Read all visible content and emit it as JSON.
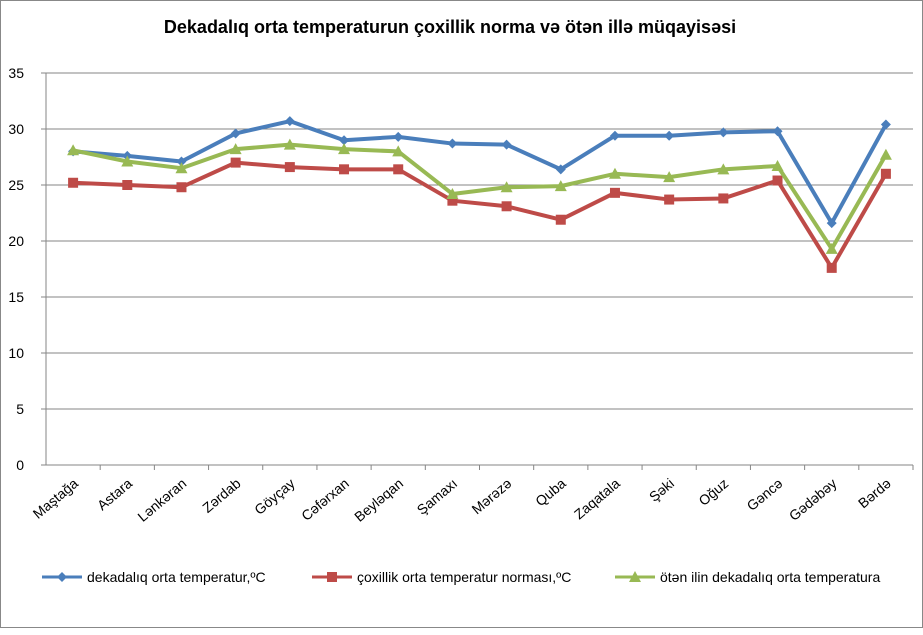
{
  "chart_data": {
    "type": "line",
    "title": "Dekadalıq orta temperaturun çoxillik norma və ötən illə müqayisəsi",
    "categories": [
      "Maştağa",
      "Astara",
      "Lənkəran",
      "Zərdab",
      "Göyçay",
      "Cəfərxan",
      "Beyləqan",
      "Şamaxı",
      "Mərəzə",
      "Quba",
      "Zaqatala",
      "Şəki",
      "Oğuz",
      "Gəncə",
      "Gədəbəy",
      "Bərdə"
    ],
    "series": [
      {
        "name": "dekadalıq orta temperatur,ºC",
        "color": "#4a7ebb",
        "marker": "diamond",
        "values": [
          28.0,
          27.6,
          27.1,
          29.6,
          30.7,
          29.0,
          29.3,
          28.7,
          28.6,
          26.4,
          29.4,
          29.4,
          29.7,
          29.8,
          21.6,
          30.4
        ]
      },
      {
        "name": "çoxillik orta temperatur norması,ºC",
        "color": "#be4b48",
        "marker": "square",
        "values": [
          25.2,
          25.0,
          24.8,
          27.0,
          26.6,
          26.4,
          26.4,
          23.6,
          23.1,
          21.9,
          24.3,
          23.7,
          23.8,
          25.4,
          17.6,
          26.0
        ]
      },
      {
        "name": "ötən ilin dekadalıq orta temperatura",
        "color": "#98b954",
        "marker": "triangle",
        "values": [
          28.1,
          27.1,
          26.5,
          28.2,
          28.6,
          28.2,
          28.0,
          24.2,
          24.8,
          24.9,
          26.0,
          25.7,
          26.4,
          26.7,
          19.3,
          27.7
        ]
      }
    ],
    "ylim": [
      0,
      35
    ],
    "yticks": [
      0,
      5,
      10,
      15,
      20,
      25,
      30,
      35
    ],
    "grid": true,
    "legend": "bottom"
  }
}
